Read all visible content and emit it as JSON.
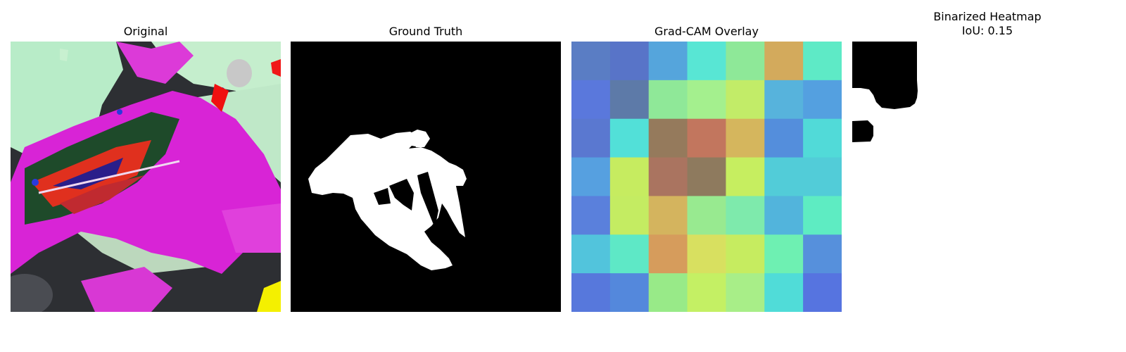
{
  "panels": {
    "original": {
      "title": "Original"
    },
    "ground_truth": {
      "title": "Ground Truth"
    },
    "gradcam": {
      "title": "Grad-CAM Overlay",
      "grid": [
        [
          "#5a7dc4",
          "#5874c8",
          "#55a5dc",
          "#58e6d4",
          "#8ee898",
          "#d3aa5c",
          "#5eeac6"
        ],
        [
          "#5a78dc",
          "#5d7aa8",
          "#8fe898",
          "#a4f08e",
          "#c2ec68",
          "#57b3dc",
          "#54a0e0"
        ],
        [
          "#5a78d0",
          "#52e0d8",
          "#957a5c",
          "#c2765e",
          "#d5b65d",
          "#548edc",
          "#51dad8"
        ],
        [
          "#56a0e0",
          "#c6ec60",
          "#aa7460",
          "#8e7a5e",
          "#c6ee60",
          "#52ccd8",
          "#52ccd8"
        ],
        [
          "#5a80dc",
          "#c4ec62",
          "#d4b45e",
          "#98ea90",
          "#7eeaac",
          "#52b4dc",
          "#5eecc2"
        ],
        [
          "#52c4dc",
          "#5ee8c6",
          "#d69c5c",
          "#d8e060",
          "#c6ec60",
          "#6ef0b2",
          "#5690dc"
        ],
        [
          "#5778dc",
          "#5488dc",
          "#98ea88",
          "#c4f064",
          "#a8ee88",
          "#50dcd8",
          "#5674e0"
        ]
      ]
    },
    "binarized": {
      "title_line1": "Binarized Heatmap",
      "title_line2": "IoU: 0.15"
    }
  }
}
